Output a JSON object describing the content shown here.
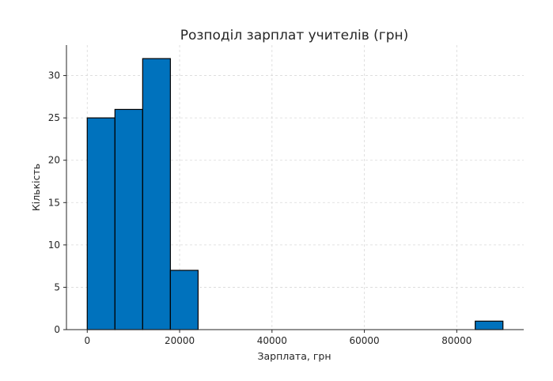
{
  "chart_data": {
    "type": "bar",
    "title": "Розподіл зарплат учителів (грн)",
    "xlabel": "Зарплата, грн",
    "ylabel": "Кількість",
    "xlim": [
      -4500,
      94500
    ],
    "ylim": [
      0,
      33.6
    ],
    "grid": true,
    "x_ticks": [
      0,
      20000,
      40000,
      60000,
      80000
    ],
    "x_tick_labels": [
      "0",
      "20000",
      "40000",
      "60000",
      "80000"
    ],
    "y_ticks": [
      0,
      5,
      10,
      15,
      20,
      25,
      30
    ],
    "y_tick_labels": [
      "0",
      "5",
      "10",
      "15",
      "20",
      "25",
      "30"
    ],
    "bins": [
      {
        "start": 0,
        "end": 6000,
        "count": 25
      },
      {
        "start": 6000,
        "end": 12000,
        "count": 26
      },
      {
        "start": 12000,
        "end": 18000,
        "count": 32
      },
      {
        "start": 18000,
        "end": 24000,
        "count": 7
      },
      {
        "start": 24000,
        "end": 30000,
        "count": 0
      },
      {
        "start": 30000,
        "end": 36000,
        "count": 0
      },
      {
        "start": 36000,
        "end": 42000,
        "count": 0
      },
      {
        "start": 42000,
        "end": 48000,
        "count": 0
      },
      {
        "start": 48000,
        "end": 54000,
        "count": 0
      },
      {
        "start": 54000,
        "end": 60000,
        "count": 0
      },
      {
        "start": 60000,
        "end": 66000,
        "count": 0
      },
      {
        "start": 66000,
        "end": 72000,
        "count": 0
      },
      {
        "start": 72000,
        "end": 78000,
        "count": 0
      },
      {
        "start": 78000,
        "end": 84000,
        "count": 0
      },
      {
        "start": 84000,
        "end": 90000,
        "count": 1
      }
    ],
    "bar_color": "#0072BD",
    "edge_color": "#000000",
    "grid_color": "#d9d9d9"
  }
}
